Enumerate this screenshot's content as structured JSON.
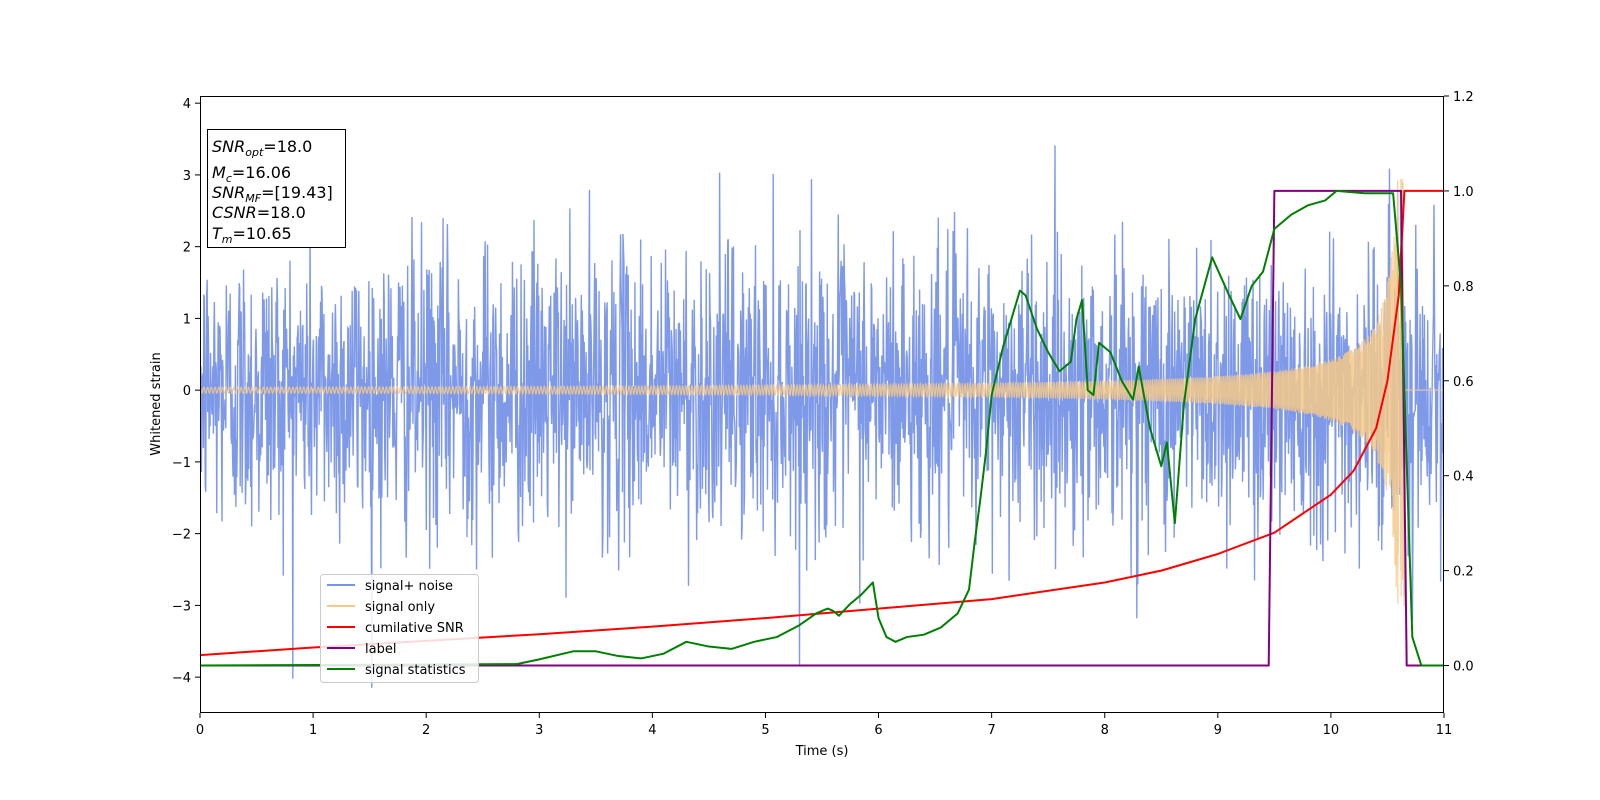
{
  "chart_data": {
    "type": "line",
    "xlabel": "Time (s)",
    "ylabel": "Whitened strain",
    "xlim": [
      0,
      11
    ],
    "ylim_left": [
      -4.5,
      4.1
    ],
    "ylim_right": [
      -0.1,
      1.2
    ],
    "x_ticks": [
      "0",
      "1",
      "2",
      "3",
      "4",
      "5",
      "6",
      "7",
      "8",
      "9",
      "10",
      "11"
    ],
    "y_ticks_left": [
      "−4",
      "−3",
      "−2",
      "−1",
      "0",
      "1",
      "2",
      "3",
      "4"
    ],
    "y_ticks_right": [
      "0.0",
      "0.2",
      "0.4",
      "0.6",
      "0.8",
      "1.0",
      "1.2"
    ],
    "legend_position": "lower-left",
    "series": [
      {
        "name": "signal+ noise",
        "color": "#7893e8",
        "axis": "left",
        "description_values": {
          "x_range": [
            0,
            11
          ],
          "std": 1.0,
          "min": -4.15,
          "max": 3.7
        }
      },
      {
        "name": "signal only",
        "color": "#f5c98a",
        "axis": "left",
        "description_values": {
          "x_range": [
            0,
            11
          ],
          "merger_time": 10.65,
          "peak_amplitude": 3.0,
          "initial_amplitude": 0.04
        }
      },
      {
        "name": "cumilative SNR",
        "color": "#ff0000",
        "axis": "right",
        "x": [
          0,
          1,
          2,
          3,
          4,
          5,
          6,
          7,
          8,
          8.5,
          9,
          9.5,
          10,
          10.2,
          10.4,
          10.5,
          10.6,
          10.65,
          11
        ],
        "y": [
          0.022,
          0.038,
          0.052,
          0.066,
          0.082,
          0.1,
          0.12,
          0.14,
          0.175,
          0.2,
          0.235,
          0.28,
          0.36,
          0.41,
          0.5,
          0.6,
          0.78,
          1.0,
          1.0
        ]
      },
      {
        "name": "label",
        "color": "#800080",
        "axis": "right",
        "x": [
          0,
          9.45,
          9.5,
          10.62,
          10.67,
          11
        ],
        "y": [
          0.0,
          0.0,
          1.0,
          1.0,
          0.0,
          0.0
        ]
      },
      {
        "name": "signal statistics",
        "color": "#008000",
        "axis": "right",
        "x": [
          0,
          2.8,
          3.0,
          3.3,
          3.5,
          3.7,
          3.9,
          4.1,
          4.3,
          4.5,
          4.7,
          4.9,
          5.1,
          5.3,
          5.45,
          5.55,
          5.6,
          5.65,
          5.75,
          5.85,
          5.95,
          6.0,
          6.07,
          6.15,
          6.25,
          6.4,
          6.55,
          6.7,
          6.8,
          6.85,
          6.9,
          6.95,
          7.0,
          7.05,
          7.1,
          7.2,
          7.25,
          7.3,
          7.4,
          7.5,
          7.6,
          7.7,
          7.75,
          7.8,
          7.85,
          7.9,
          7.95,
          8.05,
          8.15,
          8.25,
          8.3,
          8.4,
          8.5,
          8.55,
          8.62,
          8.7,
          8.8,
          8.95,
          9.1,
          9.2,
          9.3,
          9.4,
          9.5,
          9.65,
          9.8,
          9.95,
          10.05,
          10.3,
          10.55,
          10.62,
          10.66,
          10.72,
          10.8,
          11
        ],
        "y": [
          0.0,
          0.003,
          0.013,
          0.03,
          0.03,
          0.02,
          0.015,
          0.025,
          0.05,
          0.04,
          0.035,
          0.05,
          0.06,
          0.085,
          0.11,
          0.12,
          0.115,
          0.105,
          0.13,
          0.15,
          0.175,
          0.1,
          0.06,
          0.05,
          0.06,
          0.065,
          0.08,
          0.11,
          0.16,
          0.26,
          0.35,
          0.45,
          0.57,
          0.62,
          0.67,
          0.75,
          0.79,
          0.78,
          0.71,
          0.66,
          0.62,
          0.64,
          0.73,
          0.77,
          0.58,
          0.57,
          0.68,
          0.66,
          0.6,
          0.56,
          0.63,
          0.5,
          0.42,
          0.47,
          0.3,
          0.55,
          0.73,
          0.86,
          0.78,
          0.73,
          0.8,
          0.83,
          0.92,
          0.95,
          0.97,
          0.98,
          1.0,
          0.995,
          0.995,
          0.8,
          0.5,
          0.06,
          0.0,
          0.0
        ]
      }
    ]
  },
  "infobox": {
    "line1_sym": "SNR",
    "line1_sub": "opt",
    "line1_val": "=18.0",
    "line2_sym": "M",
    "line2_sub": "c",
    "line2_val": "=16.06",
    "line3_sym": "SNR",
    "line3_sub": "MF",
    "line3_val": "=[19.43]",
    "line4_sym": "CSNR",
    "line4_val": "=18.0",
    "line5_sym": "T",
    "line5_sub": "m",
    "line5_val": "=10.65"
  }
}
